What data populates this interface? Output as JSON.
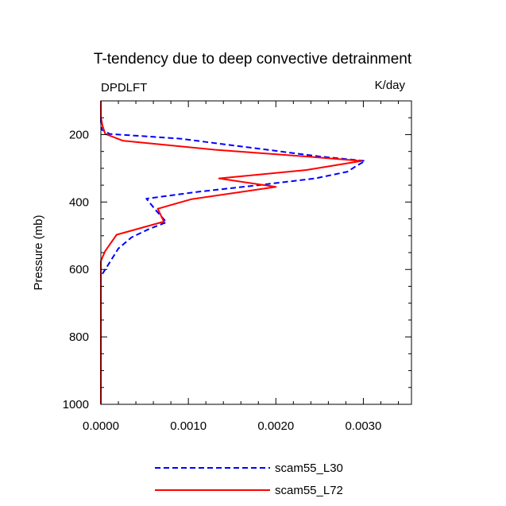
{
  "chart_data": {
    "type": "line",
    "title": "T-tendency due to deep convective detrainment",
    "subtitle_left": "DPDLFT",
    "subtitle_right": "K/day",
    "xlabel": "",
    "ylabel": "Pressure (mb)",
    "xlim": [
      0,
      0.00355
    ],
    "ylim": [
      1000,
      100
    ],
    "y_inverted": true,
    "x_ticks": [
      0.0,
      0.001,
      0.002,
      0.003
    ],
    "x_tick_labels": [
      "0.0000",
      "0.0010",
      "0.0020",
      "0.0030"
    ],
    "y_ticks": [
      200,
      400,
      600,
      800,
      1000
    ],
    "y_tick_labels": [
      "200",
      "400",
      "600",
      "800",
      "1000"
    ],
    "grid": false,
    "legend_position": "bottom",
    "series": [
      {
        "name": "scam55_L30",
        "color": "#0000ff",
        "style": "dashed",
        "points": [
          [
            0.0,
            100
          ],
          [
            0.0,
            160
          ],
          [
            1e-05,
            185
          ],
          [
            0.0001,
            198
          ],
          [
            0.0009,
            212
          ],
          [
            0.0019,
            245
          ],
          [
            0.0025,
            265
          ],
          [
            0.00302,
            278
          ],
          [
            0.00292,
            293
          ],
          [
            0.00282,
            310
          ],
          [
            0.00245,
            330
          ],
          [
            0.0018,
            350
          ],
          [
            0.0011,
            370
          ],
          [
            0.00052,
            390
          ],
          [
            0.00063,
            425
          ],
          [
            0.00075,
            460
          ],
          [
            0.00055,
            480
          ],
          [
            0.00035,
            505
          ],
          [
            0.0002,
            538
          ],
          [
            5e-05,
            600
          ],
          [
            0.0,
            620
          ],
          [
            0.0,
            1000
          ]
        ]
      },
      {
        "name": "scam55_L72",
        "color": "#ff0000",
        "style": "solid",
        "points": [
          [
            0.0,
            100
          ],
          [
            0.0,
            150
          ],
          [
            2e-05,
            175
          ],
          [
            5e-05,
            198
          ],
          [
            0.00025,
            218
          ],
          [
            0.0013,
            245
          ],
          [
            0.00235,
            265
          ],
          [
            0.00298,
            278
          ],
          [
            0.00235,
            305
          ],
          [
            0.00135,
            330
          ],
          [
            0.002,
            355
          ],
          [
            0.00103,
            392
          ],
          [
            0.00065,
            420
          ],
          [
            0.00072,
            458
          ],
          [
            0.00018,
            497
          ],
          [
            5e-05,
            545
          ],
          [
            0.0,
            575
          ],
          [
            0.0,
            1000
          ]
        ]
      }
    ]
  }
}
